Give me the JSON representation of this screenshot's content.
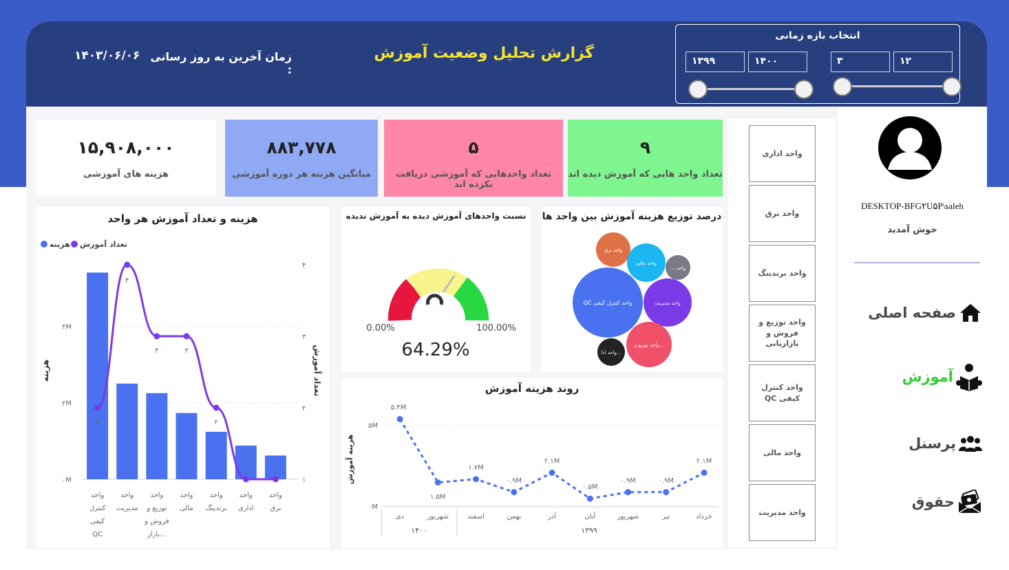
{
  "header": {
    "title": "گزارش تحلیل وضعیت آموزش",
    "last_update_label": "زمان آخرین به روز رسانی :",
    "last_update_value": "۱۴۰۳/۰۶/۰۶"
  },
  "period_picker": {
    "title": "انتخاب بازه زمانی",
    "year_from": "۱۳۹۹",
    "year_to": "۱۴۰۰",
    "month_from": "۳",
    "month_to": "۱۲"
  },
  "kpis": [
    {
      "value": "۱۵,۹۰۸,۰۰۰",
      "label": "هزینه های آموزشی",
      "color": "#ffffff",
      "text_color": "#555555"
    },
    {
      "value": "۸۸۳,۷۷۸",
      "label": "میانگین هزینه هر دوره آموزشی",
      "color": "#8fa9f5",
      "text_color": "#555555"
    },
    {
      "value": "۵",
      "label": "تعداد واحدهایی که آموزشی دریافت نکرده اند",
      "color": "#ff85a9",
      "text_color": "#555555"
    },
    {
      "value": "۹",
      "label": "تعداد واحد هایی که آموزش دیده اند",
      "color": "#7ef58f",
      "text_color": "#555555"
    }
  ],
  "bar_combo": {
    "title": "هزینه و تعداد آموزش هر واحد",
    "legend_cost": "هزینه",
    "legend_count": "تعداد آموزش",
    "ylabel_left": "هزینه",
    "ylabel_right": "تعداد آموزش",
    "left_ticks": [
      "۰M",
      "۲M",
      "۴M"
    ],
    "right_ticks": [
      "۱",
      "۲",
      "۳",
      "۴"
    ],
    "count_labels": [
      "۲",
      "۴",
      "۳",
      "۳",
      "۲",
      "۱",
      "۱"
    ],
    "cat_lines": [
      [
        "واحد",
        "کنترل",
        "کیفی",
        "QC"
      ],
      [
        "واحد",
        "مدیریت"
      ],
      [
        "واحد",
        "توزیع و",
        "فروش و",
        "بازار..."
      ],
      [
        "واحد",
        "مالی"
      ],
      [
        "واحد",
        "برندینگ"
      ],
      [
        "واحد",
        "اداری"
      ],
      [
        "واحد",
        "برق"
      ]
    ]
  },
  "gauge": {
    "title": "نسبت واحدهای آموزش دیده به آموزش ندیده",
    "min_label": "0.00%",
    "max_label": "100.00%",
    "value_label": "64.29%"
  },
  "bubbles": {
    "title": "درصد توزیع هزینه آموزش بین واحد ها",
    "items": [
      {
        "label": "واحد برق",
        "color": "#e07045"
      },
      {
        "label": "واحد مالی",
        "color": "#1cb7f0"
      },
      {
        "label": "... واحد",
        "color": "#7a7a86"
      },
      {
        "label": "QC واحد کنترل کیفی",
        "color": "#4a72f0"
      },
      {
        "label": "واحد مدیریت",
        "color": "#7b3ae8"
      },
      {
        "label": "واحد توزیع و...",
        "color": "#f05068"
      },
      {
        "label": "واحد ادا...",
        "color": "#222222"
      }
    ]
  },
  "trend": {
    "title": "روند هزینه آموزش",
    "ylabel": "هزینه آموزش",
    "y_ticks": [
      "۰M",
      "۵M"
    ],
    "year_labels": [
      "۱۴۰۰",
      "۱۳۹۹"
    ]
  },
  "chart_data": [
    {
      "type": "bar",
      "title": "هزینه و تعداد آموزش هر واحد",
      "categories": [
        "واحد کنترل کیفی QC",
        "واحد مدیریت",
        "واحد توزیع و فروش و بازار...",
        "واحد مالی",
        "واحد برندینگ",
        "واحد اداری",
        "واحد برق"
      ],
      "series": [
        {
          "name": "هزینه",
          "values": [
            5.4,
            2.5,
            2.25,
            1.73,
            1.24,
            0.88,
            0.62
          ]
        },
        {
          "name": "تعداد آموزش",
          "values": [
            2,
            4,
            3,
            3,
            2,
            1,
            1
          ]
        }
      ],
      "ylim": [
        0,
        6
      ],
      "y2lim": [
        1,
        4
      ]
    },
    {
      "type": "line",
      "title": "روند هزینه آموزش",
      "x": [
        "دی",
        "شهریور",
        "اسفند",
        "بهمن",
        "آذر",
        "آبان",
        "شهریور",
        "تیر",
        "خرداد"
      ],
      "years": [
        "۱۴۰۰",
        "۱۴۰۰",
        "۱۳۹۹",
        "۱۳۹۹",
        "۱۳۹۹",
        "۱۳۹۹",
        "۱۳۹۹",
        "۱۳۹۹",
        "۱۳۹۹"
      ],
      "values": [
        5.4,
        1.5,
        1.7,
        0.9,
        2.1,
        0.5,
        0.9,
        0.9,
        2.1
      ],
      "value_labels": [
        "۵.۴M",
        "۱.۵M",
        "۱.۷M",
        "۰.۹M",
        "۲.۱M",
        "۰.۵M",
        "۰.۹M",
        "۰.۹M",
        "۲.۱M"
      ],
      "ylim": [
        0,
        5.8
      ]
    }
  ],
  "units": {
    "items": [
      "واحد اداری",
      "واحد برق",
      "واحد برندینگ",
      "واحد توزیع و فروش و بازاریابی",
      "واحد کنترل کیفی QC",
      "واحد مالی",
      "واحد مدیریت"
    ]
  },
  "sidebar": {
    "user": "DESKTOP-BFG۲U۵P\\saleh",
    "welcome": "خوش آمدید",
    "items": [
      {
        "label": "صفحه اصلی",
        "icon": "home-icon",
        "active": false
      },
      {
        "label": "آموزش",
        "icon": "reader-icon",
        "active": true
      },
      {
        "label": "پرسنل",
        "icon": "users-icon",
        "active": false
      },
      {
        "label": "حقوق",
        "icon": "money-icon",
        "active": false
      }
    ],
    "active_color": "#33cc33"
  }
}
